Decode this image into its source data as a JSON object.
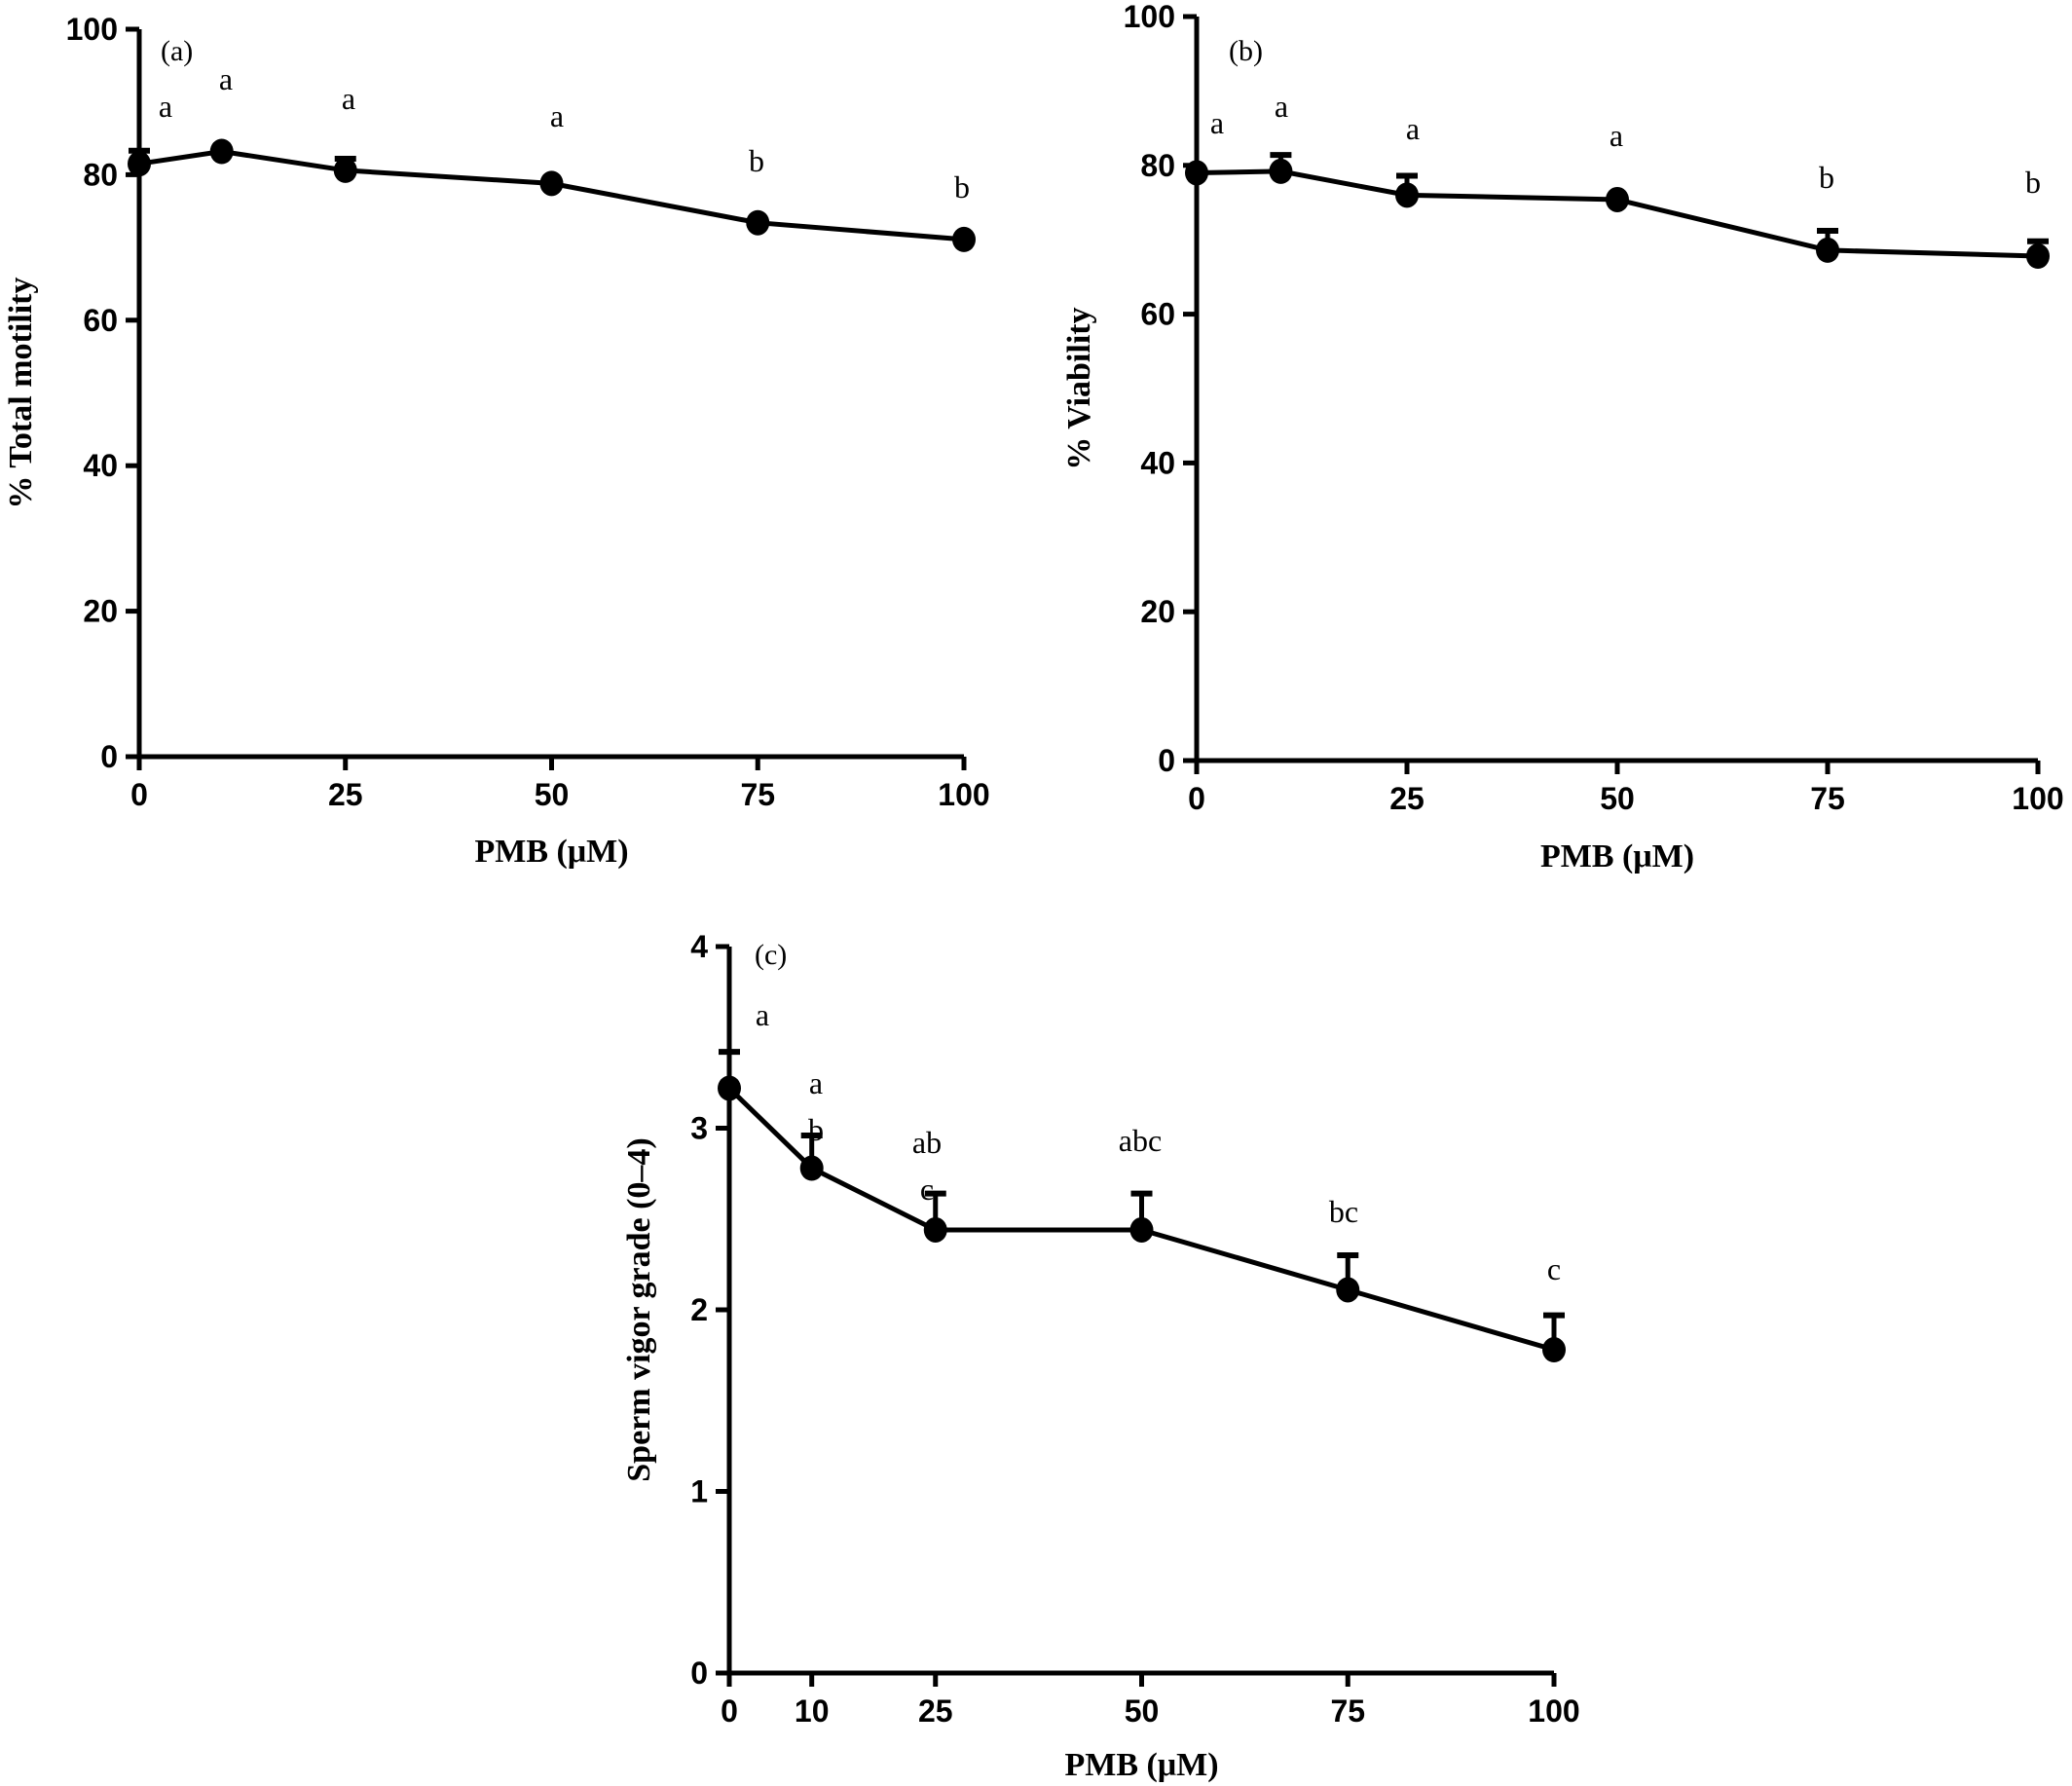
{
  "chart_data": [
    {
      "type": "line",
      "panel_label": "(a)",
      "xlabel": "PMB (μM)",
      "ylabel": "% Total motility",
      "xlim": [
        0,
        100
      ],
      "ylim": [
        0,
        100
      ],
      "xticks": [
        0,
        25,
        50,
        75,
        100
      ],
      "yticks": [
        0,
        20,
        40,
        60,
        80,
        100
      ],
      "grid": false,
      "series": [
        {
          "x": [
            0,
            10,
            25,
            50,
            75,
            100
          ],
          "y": [
            81.5,
            83.2,
            80.6,
            78.8,
            73.4,
            71.1
          ],
          "error": [
            1.8,
            0,
            1.6,
            0,
            0,
            0
          ],
          "significance": [
            "a",
            "a",
            "a",
            "a",
            "b",
            "b"
          ]
        }
      ]
    },
    {
      "type": "line",
      "panel_label": "(b)",
      "xlabel": "PMB (μM)",
      "ylabel": "% Viability",
      "xlim": [
        0,
        100
      ],
      "ylim": [
        0,
        100
      ],
      "xticks": [
        0,
        25,
        50,
        75,
        100
      ],
      "yticks": [
        0,
        20,
        40,
        60,
        80,
        100
      ],
      "grid": false,
      "series": [
        {
          "x": [
            0,
            10,
            25,
            50,
            75,
            100
          ],
          "y": [
            79.0,
            79.2,
            76.0,
            75.4,
            68.6,
            67.8
          ],
          "error": [
            0,
            2.2,
            2.6,
            0,
            2.6,
            2.0
          ],
          "significance": [
            "a",
            "a",
            "a",
            "a",
            "b",
            "b"
          ]
        }
      ]
    },
    {
      "type": "line",
      "panel_label": "(c)",
      "xlabel": "PMB (μM)",
      "ylabel": "Sperm vigor grade (0–4)",
      "xlim": [
        0,
        100
      ],
      "ylim": [
        0,
        4
      ],
      "xticks": [
        0,
        10,
        25,
        50,
        75,
        100
      ],
      "yticks": [
        0,
        1,
        2,
        3,
        4
      ],
      "grid": false,
      "series": [
        {
          "x": [
            0,
            10,
            25,
            50,
            75,
            100
          ],
          "y": [
            3.22,
            2.78,
            2.44,
            2.44,
            2.11,
            1.78
          ],
          "error": [
            0.2,
            0.18,
            0.2,
            0.2,
            0.19,
            0.19
          ],
          "significance": [
            "a",
            "a\nb",
            "ab\nc",
            "abc",
            "bc",
            "c"
          ]
        }
      ]
    }
  ]
}
